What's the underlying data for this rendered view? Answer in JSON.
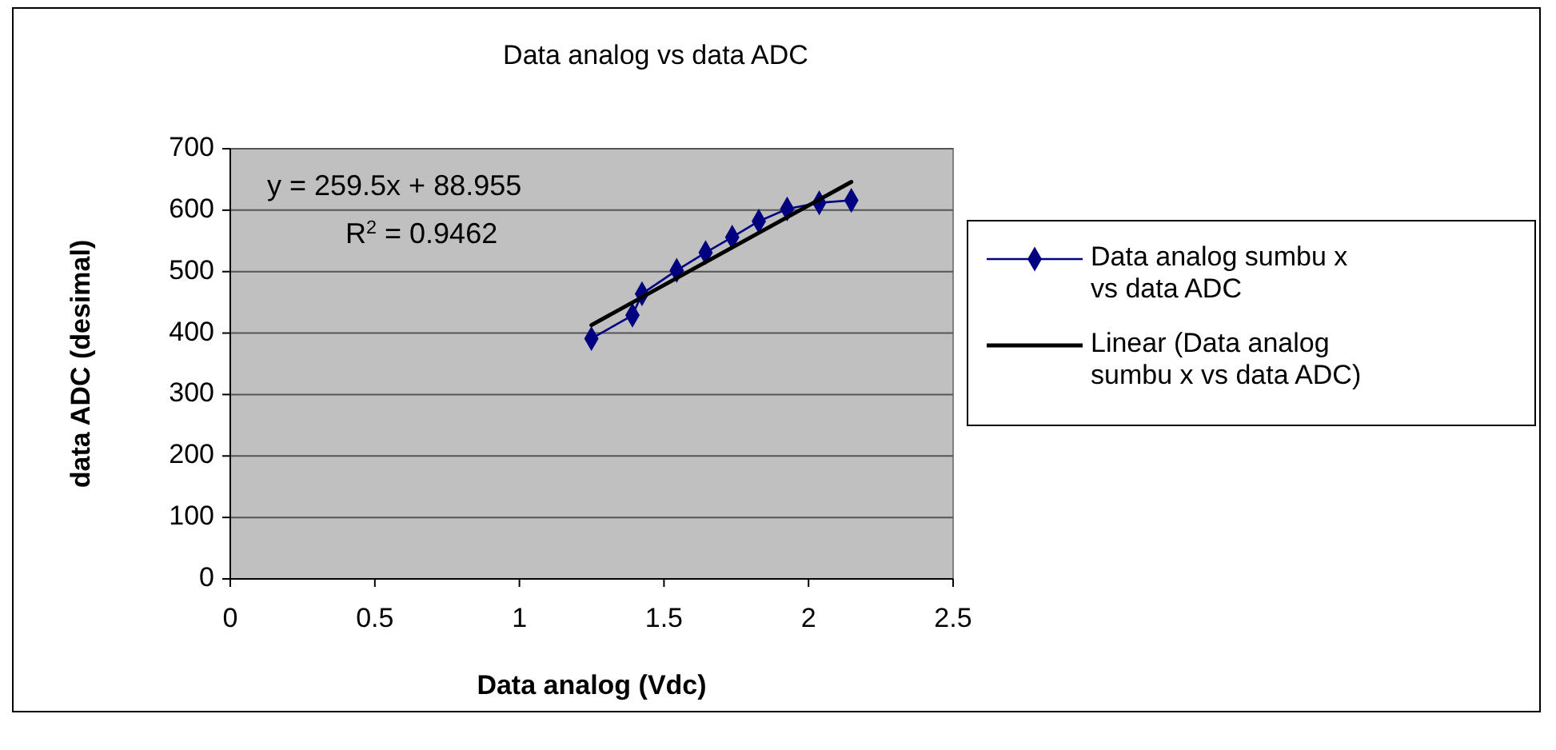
{
  "chart_data": {
    "type": "line",
    "title": "Data analog vs data ADC",
    "xlabel": "Data analog (Vdc)",
    "ylabel": "data ADC (desimal)",
    "xlim": [
      0,
      2.5
    ],
    "xticks": [
      0,
      0.5,
      1,
      1.5,
      2,
      2.5
    ],
    "ylim": [
      0,
      700
    ],
    "yticks": [
      0,
      100,
      200,
      300,
      400,
      500,
      600,
      700
    ],
    "grid": "y",
    "legend": "right",
    "series": [
      {
        "name": "Data analog sumbu x vs data ADC",
        "color": "#000080",
        "marker": "diamond",
        "x": [
          1.249,
          1.391,
          1.424,
          1.544,
          1.644,
          1.736,
          1.828,
          1.926,
          2.037,
          2.148
        ],
        "values": [
          391,
          429,
          464,
          502,
          531,
          556,
          582,
          602,
          612,
          616
        ]
      },
      {
        "name": "Linear (Data analog sumbu x vs data ADC)",
        "color": "#000000",
        "marker": "none",
        "x": [
          1.249,
          2.148
        ],
        "values": [
          413,
          646
        ]
      }
    ],
    "annotations": [
      "y = 259.5x + 88.955",
      "R$^{2}$ = 0.9462"
    ]
  }
}
